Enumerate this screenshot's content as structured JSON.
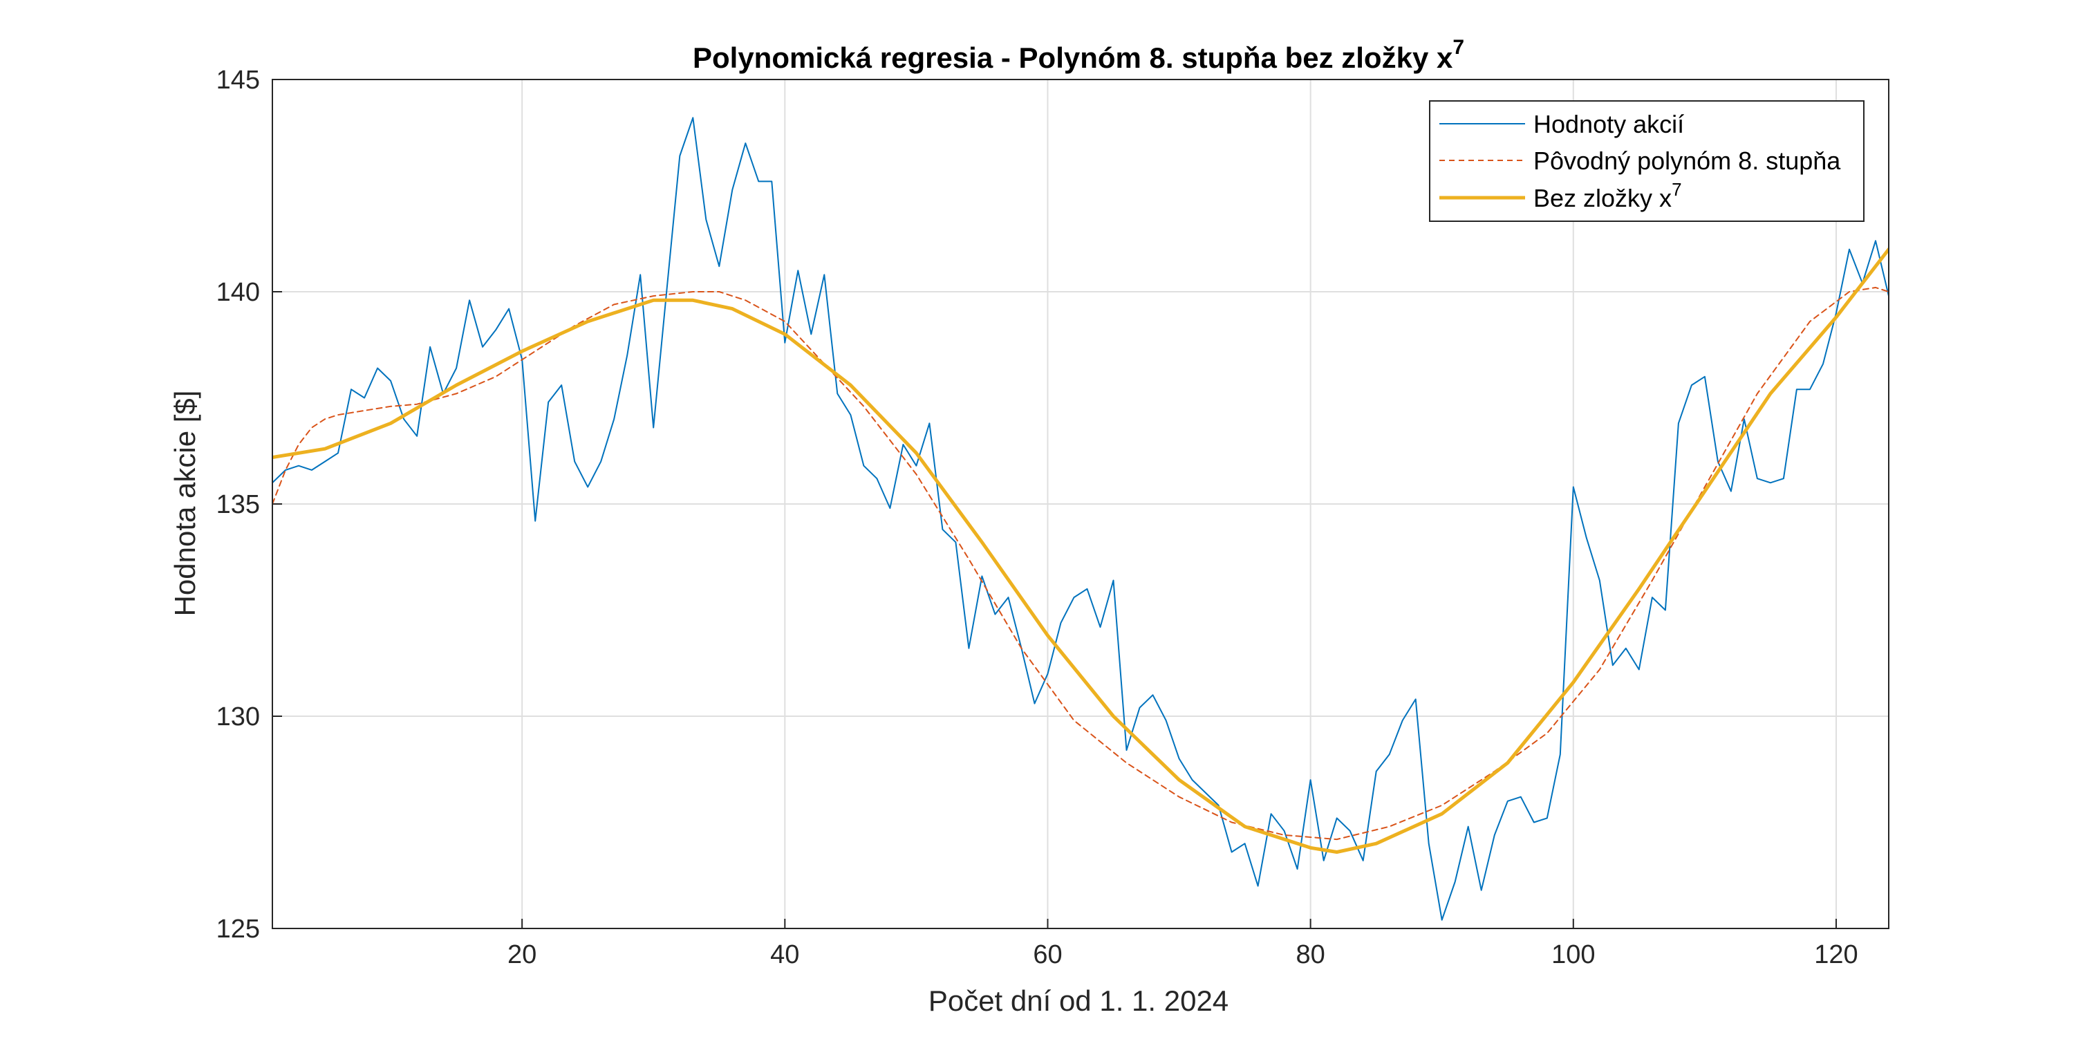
{
  "chart_data": {
    "type": "line",
    "title": "Polynomická regresia - Polynóm 8. stupňa bez zložky x",
    "title_superscript": "7",
    "xlabel": "Počet dní od 1. 1. 2024",
    "ylabel": "Hodnota akcie [$]",
    "xlim": [
      1,
      124
    ],
    "ylim": [
      125,
      145
    ],
    "xticks": [
      20,
      40,
      60,
      80,
      100,
      120
    ],
    "yticks": [
      125,
      130,
      135,
      140,
      145
    ],
    "xtick_labels": [
      "20",
      "40",
      "60",
      "80",
      "100",
      "120"
    ],
    "ytick_labels": [
      "125",
      "130",
      "135",
      "140",
      "145"
    ],
    "grid": true,
    "legend_position": "top-right",
    "series": [
      {
        "name": "Hodnoty akcií",
        "style": "solid-thin",
        "color": "#0072BD",
        "x": [
          1,
          2,
          3,
          4,
          5,
          6,
          7,
          8,
          9,
          10,
          11,
          12,
          13,
          14,
          15,
          16,
          17,
          18,
          19,
          20,
          21,
          22,
          23,
          24,
          25,
          26,
          27,
          28,
          29,
          30,
          31,
          32,
          33,
          34,
          35,
          36,
          37,
          38,
          39,
          40,
          41,
          42,
          43,
          44,
          45,
          46,
          47,
          48,
          49,
          50,
          51,
          52,
          53,
          54,
          55,
          56,
          57,
          58,
          59,
          60,
          61,
          62,
          63,
          64,
          65,
          66,
          67,
          68,
          69,
          70,
          71,
          72,
          73,
          74,
          75,
          76,
          77,
          78,
          79,
          80,
          81,
          82,
          83,
          84,
          85,
          86,
          87,
          88,
          89,
          90,
          91,
          92,
          93,
          94,
          95,
          96,
          97,
          98,
          99,
          100,
          101,
          102,
          103,
          104,
          105,
          106,
          107,
          108,
          109,
          110,
          111,
          112,
          113,
          114,
          115,
          116,
          117,
          118,
          119,
          120,
          121,
          122,
          123,
          124
        ],
        "y": [
          135.5,
          135.8,
          135.9,
          135.8,
          136.0,
          136.2,
          137.7,
          137.5,
          138.2,
          137.9,
          137.0,
          136.6,
          138.7,
          137.6,
          138.2,
          139.8,
          138.7,
          139.1,
          139.6,
          138.4,
          134.6,
          137.4,
          137.8,
          136.0,
          135.4,
          136.0,
          137.0,
          138.5,
          140.4,
          136.8,
          140.0,
          143.2,
          144.1,
          141.7,
          140.6,
          142.4,
          143.5,
          142.6,
          142.6,
          138.8,
          140.5,
          139.0,
          140.4,
          137.6,
          137.1,
          135.9,
          135.6,
          134.9,
          136.4,
          135.9,
          136.9,
          134.4,
          134.1,
          131.6,
          133.3,
          132.4,
          132.8,
          131.6,
          130.3,
          131.0,
          132.2,
          132.8,
          133.0,
          132.1,
          133.2,
          129.2,
          130.2,
          130.5,
          129.9,
          129.0,
          128.5,
          128.2,
          127.9,
          126.8,
          127.0,
          126.0,
          127.7,
          127.3,
          126.4,
          128.5,
          126.6,
          127.6,
          127.3,
          126.6,
          128.7,
          129.1,
          129.9,
          130.4,
          127.0,
          125.2,
          126.1,
          127.4,
          125.9,
          127.2,
          128.0,
          128.1,
          127.5,
          127.6,
          129.1,
          135.4,
          134.2,
          133.2,
          131.2,
          131.6,
          131.1,
          132.8,
          132.5,
          136.9,
          137.8,
          138.0,
          136.0,
          135.3,
          137.0,
          135.6,
          135.5,
          135.6,
          137.7,
          137.7,
          138.3,
          139.5,
          141.0,
          140.2,
          141.2,
          139.9
        ]
      },
      {
        "name": "Pôvodný polynóm 8. stupňa",
        "style": "dashed-thin",
        "color": "#D95319",
        "x": [
          1,
          2,
          3,
          4,
          5,
          6,
          8,
          10,
          12,
          15,
          18,
          21,
          24,
          27,
          30,
          33,
          35,
          37,
          40,
          43,
          46,
          50,
          54,
          58,
          62,
          66,
          70,
          74,
          78,
          82,
          86,
          90,
          94,
          98,
          102,
          106,
          110,
          114,
          118,
          121,
          123,
          124
        ],
        "y": [
          135.0,
          135.8,
          136.4,
          136.8,
          137.0,
          137.1,
          137.2,
          137.3,
          137.35,
          137.6,
          138.0,
          138.6,
          139.2,
          139.7,
          139.9,
          140.0,
          140.0,
          139.8,
          139.3,
          138.3,
          137.3,
          135.7,
          133.7,
          131.6,
          129.9,
          128.9,
          128.1,
          127.5,
          127.2,
          127.1,
          127.4,
          127.9,
          128.7,
          129.6,
          131.1,
          133.2,
          135.4,
          137.6,
          139.3,
          140.0,
          140.1,
          140.0
        ]
      },
      {
        "name": "Bez zložky x",
        "name_superscript": "7",
        "style": "solid-thick",
        "color": "#EDB120",
        "x": [
          1,
          5,
          10,
          15,
          20,
          25,
          30,
          33,
          36,
          40,
          45,
          50,
          55,
          60,
          65,
          70,
          75,
          80,
          82,
          85,
          90,
          95,
          100,
          105,
          110,
          115,
          120,
          124
        ],
        "y": [
          136.1,
          136.3,
          136.9,
          137.8,
          138.6,
          139.3,
          139.8,
          139.8,
          139.6,
          139.0,
          137.8,
          136.2,
          134.1,
          131.9,
          130.0,
          128.5,
          127.4,
          126.9,
          126.8,
          127.0,
          127.7,
          128.9,
          130.8,
          133.0,
          135.3,
          137.6,
          139.4,
          141.0
        ]
      }
    ]
  }
}
